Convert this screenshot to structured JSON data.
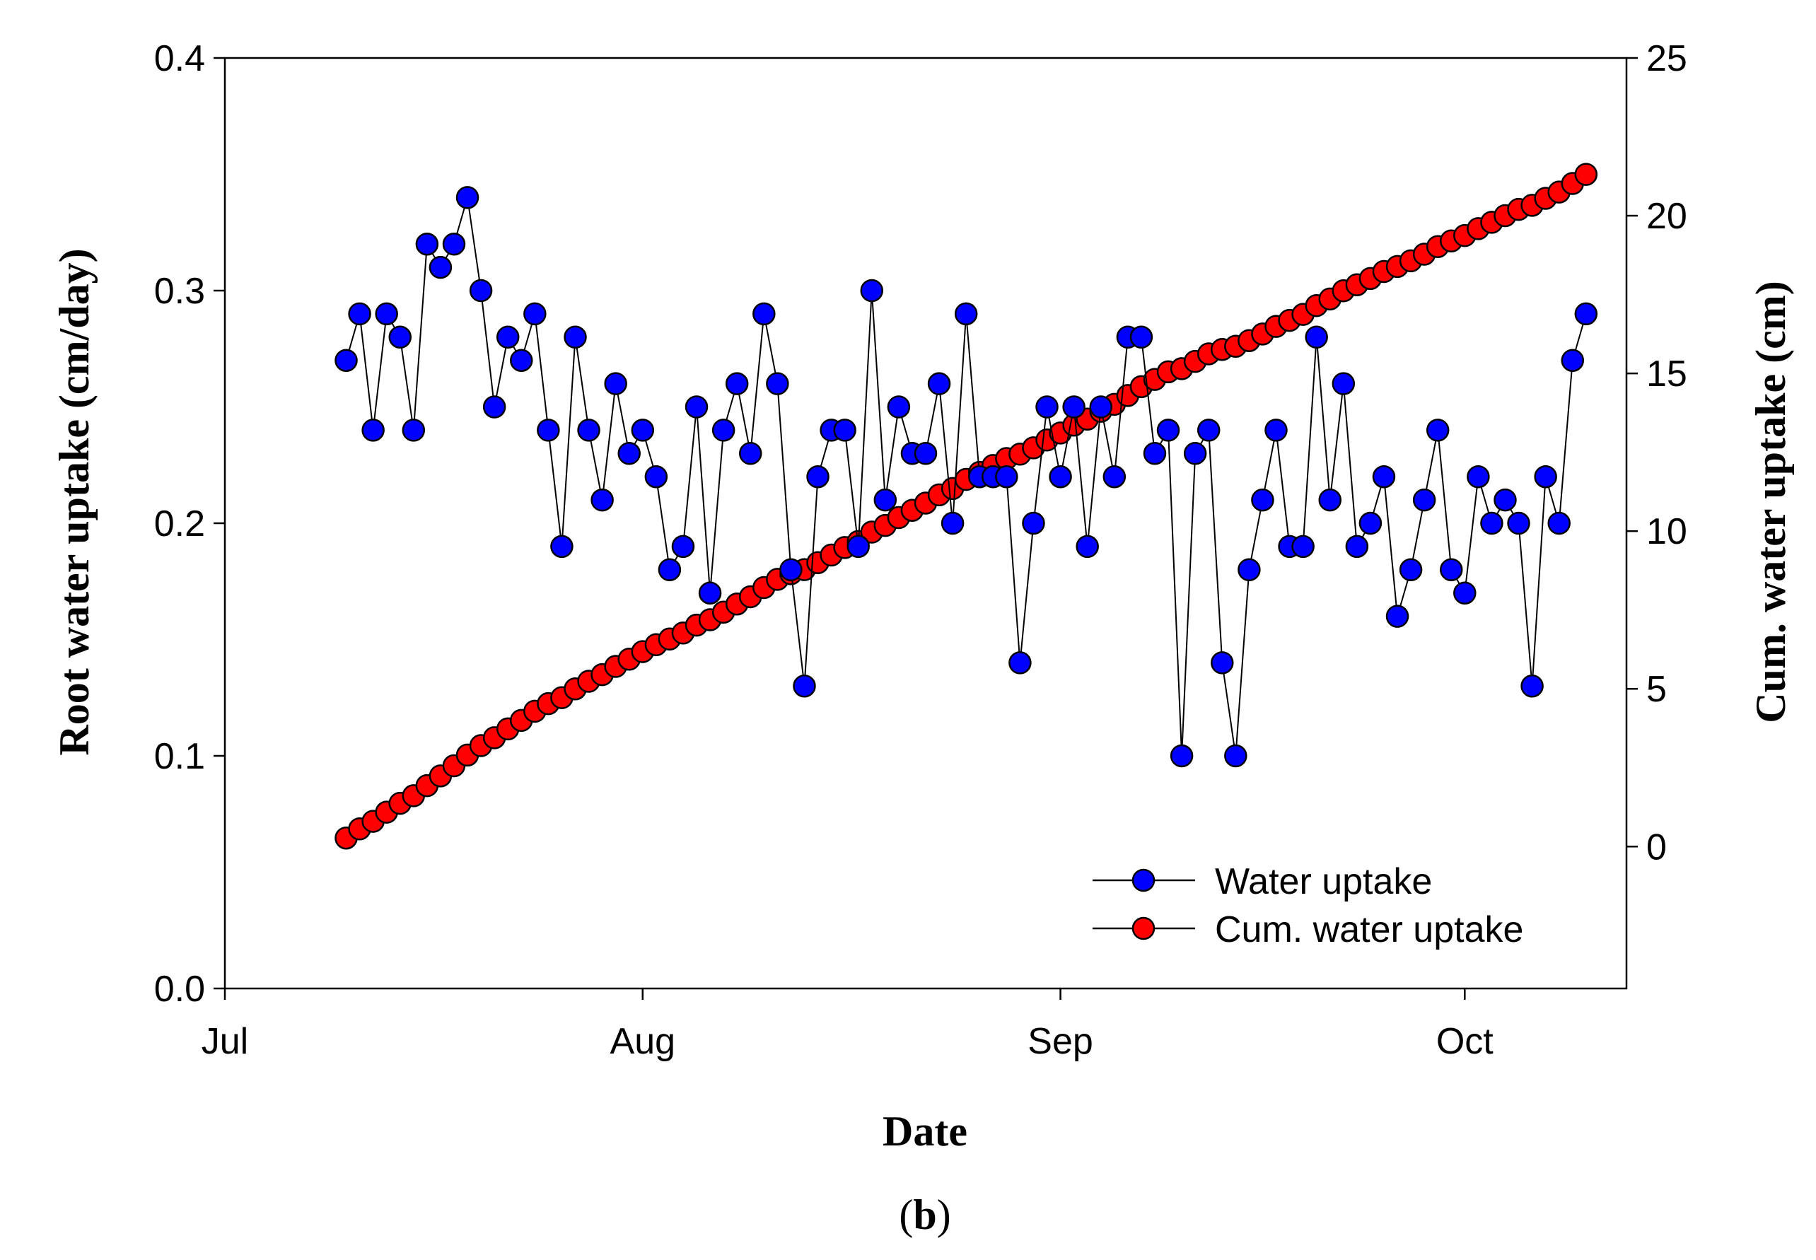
{
  "chart_data": {
    "type": "line",
    "title": "",
    "xlabel": "Date",
    "ylabel": "Root water uptake (cm/day)",
    "y2label": "Cum. water uptake (cm)",
    "caption_prefix": "(",
    "caption_letter": "b",
    "caption_suffix": ")",
    "x_ticks": [
      {
        "day": 0,
        "label": "Jul"
      },
      {
        "day": 31,
        "label": "Aug"
      },
      {
        "day": 62,
        "label": "Sep"
      },
      {
        "day": 92,
        "label": "Oct"
      }
    ],
    "xlim": [
      0,
      104
    ],
    "ylim": [
      0,
      0.4
    ],
    "y_ticks": [
      "0.0",
      "0.1",
      "0.2",
      "0.3",
      "0.4"
    ],
    "y2lim": [
      -4.5,
      25
    ],
    "y2_ticks": [
      "0",
      "5",
      "10",
      "15",
      "20",
      "25"
    ],
    "start_day": 9,
    "legend_position": "bottom-right",
    "series": [
      {
        "name": "Water uptake",
        "color": "#0000ff",
        "values": [
          0.27,
          0.29,
          0.24,
          0.29,
          0.28,
          0.24,
          0.32,
          0.31,
          0.32,
          0.34,
          0.3,
          0.25,
          0.28,
          0.27,
          0.29,
          0.24,
          0.19,
          0.28,
          0.24,
          0.21,
          0.26,
          0.23,
          0.24,
          0.22,
          0.18,
          0.19,
          0.25,
          0.17,
          0.24,
          0.26,
          0.23,
          0.29,
          0.26,
          0.18,
          0.13,
          0.22,
          0.24,
          0.24,
          0.19,
          0.3,
          0.21,
          0.25,
          0.23,
          0.23,
          0.26,
          0.2,
          0.29,
          0.22,
          0.22,
          0.22,
          0.14,
          0.2,
          0.25,
          0.22,
          0.25,
          0.19,
          0.25,
          0.22,
          0.28,
          0.28,
          0.23,
          0.24,
          0.1,
          0.23,
          0.24,
          0.14,
          0.1,
          0.18,
          0.21,
          0.24,
          0.19,
          0.19,
          0.28,
          0.21,
          0.26,
          0.19,
          0.2,
          0.22,
          0.16,
          0.18,
          0.21,
          0.24,
          0.18,
          0.17,
          0.22,
          0.2,
          0.21,
          0.2,
          0.13,
          0.22,
          0.2,
          0.27,
          0.29
        ]
      },
      {
        "name": "Cum. water uptake",
        "color": "#ff0000",
        "axis": "right",
        "values": [
          0.27,
          0.56,
          0.8,
          1.09,
          1.37,
          1.61,
          1.93,
          2.24,
          2.56,
          2.9,
          3.2,
          3.45,
          3.73,
          4.0,
          4.29,
          4.53,
          4.72,
          5.0,
          5.24,
          5.45,
          5.71,
          5.94,
          6.18,
          6.4,
          6.58,
          6.77,
          7.02,
          7.19,
          7.43,
          7.69,
          7.92,
          8.21,
          8.47,
          8.65,
          8.78,
          9.0,
          9.24,
          9.48,
          9.67,
          9.97,
          10.18,
          10.43,
          10.66,
          10.89,
          11.15,
          11.35,
          11.64,
          11.86,
          12.08,
          12.3,
          12.44,
          12.64,
          12.89,
          13.11,
          13.36,
          13.55,
          13.8,
          14.02,
          14.3,
          14.58,
          14.81,
          15.05,
          15.15,
          15.38,
          15.62,
          15.76,
          15.86,
          16.04,
          16.25,
          16.49,
          16.68,
          16.87,
          17.15,
          17.36,
          17.62,
          17.81,
          18.01,
          18.23,
          18.39,
          18.57,
          18.78,
          19.02,
          19.2,
          19.37,
          19.59,
          19.79,
          20.0,
          20.2,
          20.33,
          20.55,
          20.75,
          21.02,
          21.31
        ]
      }
    ]
  }
}
